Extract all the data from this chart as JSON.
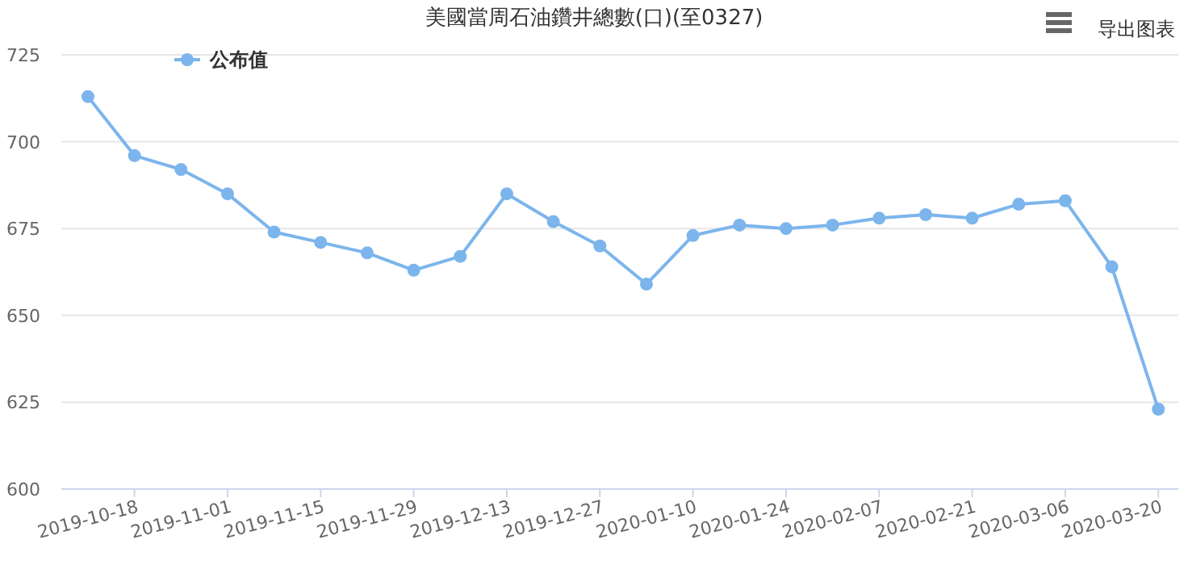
{
  "chart_data": {
    "type": "line",
    "title": "美國當周石油鑽井總數(口)(至0327)",
    "annotations": [
      "导出图表"
    ],
    "x": [
      "2019-10-11",
      "2019-10-18",
      "2019-10-25",
      "2019-11-01",
      "2019-11-08",
      "2019-11-15",
      "2019-11-22",
      "2019-11-29",
      "2019-12-06",
      "2019-12-13",
      "2019-12-20",
      "2019-12-27",
      "2020-01-03",
      "2020-01-10",
      "2020-01-17",
      "2020-01-24",
      "2020-01-31",
      "2020-02-07",
      "2020-02-14",
      "2020-02-21",
      "2020-02-28",
      "2020-03-06",
      "2020-03-13",
      "2020-03-20"
    ],
    "series": [
      {
        "name": "公布值",
        "color": "#7cb5ec",
        "values": [
          713,
          696,
          692,
          685,
          674,
          671,
          668,
          663,
          667,
          685,
          677,
          670,
          659,
          673,
          676,
          675,
          676,
          678,
          679,
          678,
          682,
          683,
          664,
          623
        ]
      }
    ],
    "xlim": [
      "2019-10-07",
      "2020-03-23"
    ],
    "xticks": [
      "2019-10-18",
      "2019-11-01",
      "2019-11-15",
      "2019-11-29",
      "2019-12-13",
      "2019-12-27",
      "2020-01-10",
      "2020-01-24",
      "2020-02-07",
      "2020-02-21",
      "2020-03-06",
      "2020-03-20"
    ],
    "ylim": [
      600,
      725
    ],
    "yticks": [
      600,
      625,
      650,
      675,
      700,
      725
    ],
    "grid": "y",
    "legend": "top left",
    "marker": "circle",
    "line_style": "solid"
  }
}
